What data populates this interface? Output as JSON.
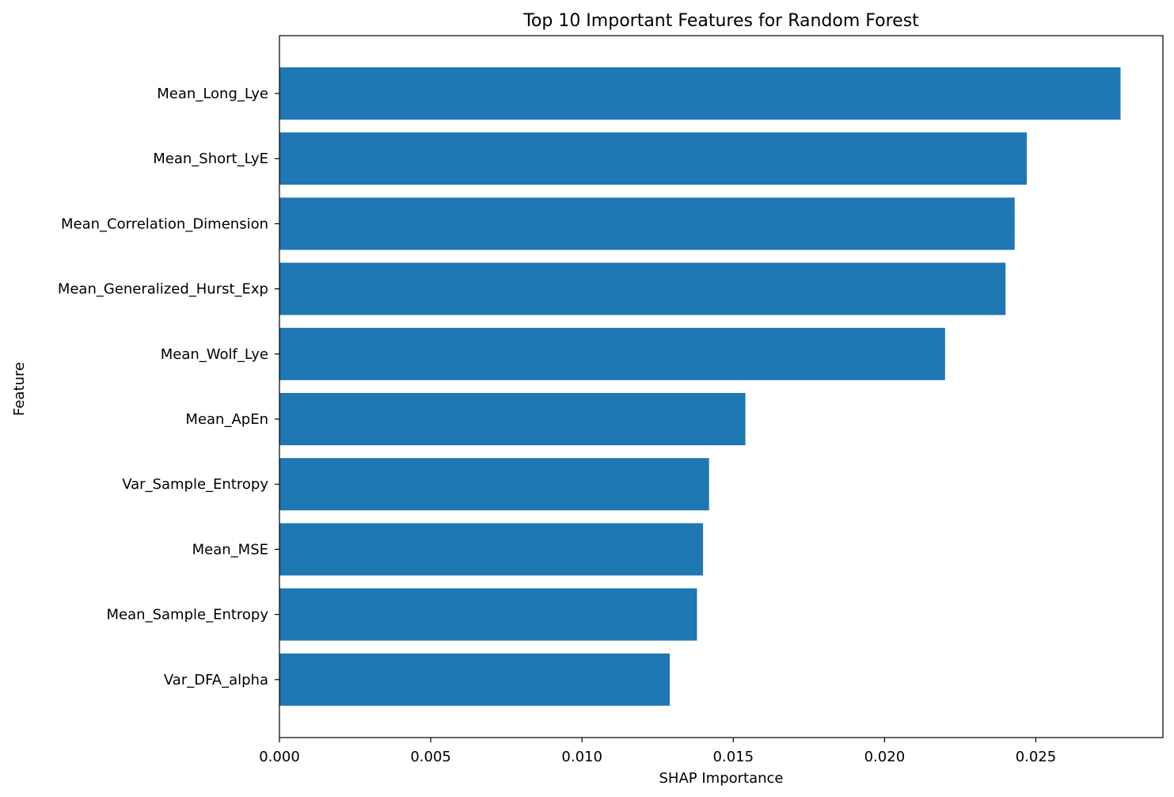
{
  "chart_data": {
    "type": "bar",
    "orientation": "horizontal",
    "title": "Top 10 Important Features for Random Forest",
    "xlabel": "SHAP Importance",
    "ylabel": "Feature",
    "categories": [
      "Mean_Long_Lye",
      "Mean_Short_LyE",
      "Mean_Correlation_Dimension",
      "Mean_Generalized_Hurst_Exp",
      "Mean_Wolf_Lye",
      "Mean_ApEn",
      "Var_Sample_Entropy",
      "Mean_MSE",
      "Mean_Sample_Entropy",
      "Var_DFA_alpha"
    ],
    "values": [
      0.0278,
      0.0247,
      0.0243,
      0.024,
      0.022,
      0.0154,
      0.0142,
      0.014,
      0.0138,
      0.0129
    ],
    "xlim": [
      0,
      0.0292
    ],
    "xticks": [
      "0.000",
      "0.005",
      "0.010",
      "0.015",
      "0.020",
      "0.025"
    ],
    "xtick_values": [
      0,
      0.005,
      0.01,
      0.015,
      0.02,
      0.025
    ],
    "grid": false,
    "bar_color": "#1f77b4"
  }
}
